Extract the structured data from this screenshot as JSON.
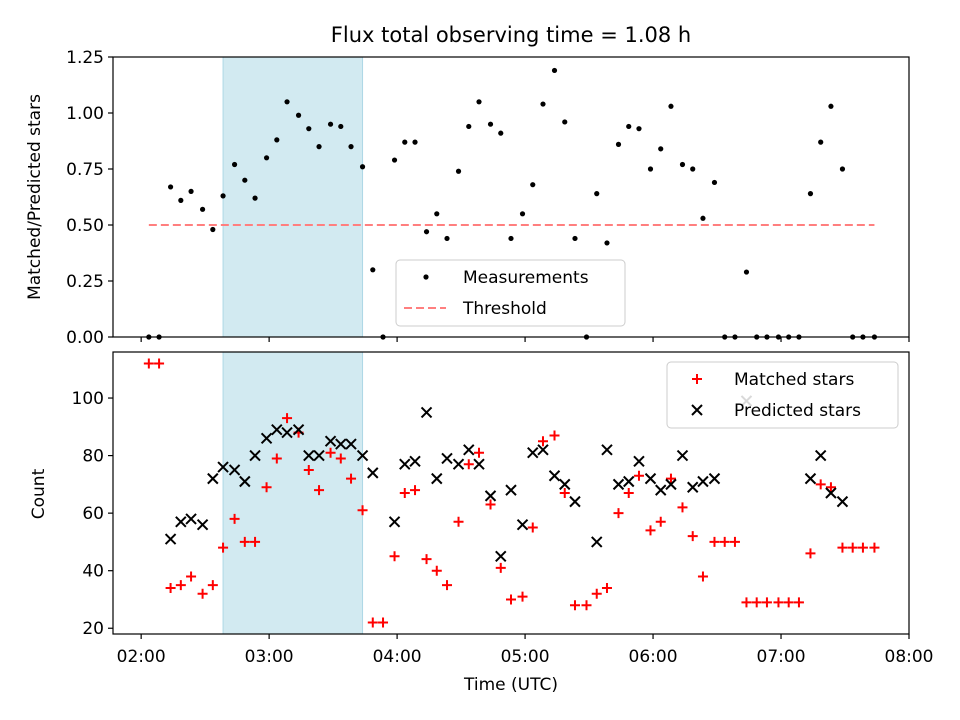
{
  "figure": {
    "title": "Flux total observing time = 1.08 h",
    "xlabel": "Time (UTC)"
  },
  "chart_data": [
    {
      "type": "scatter",
      "ylabel": "Matched/Predicted stars",
      "x_unit": "hours UTC",
      "xlim": [
        1.78,
        8.0
      ],
      "ylim": [
        0.0,
        1.25
      ],
      "yticks": [
        "0.00",
        "0.25",
        "0.50",
        "0.75",
        "1.00",
        "1.25"
      ],
      "highlight_span": [
        2.64,
        3.73
      ],
      "threshold": {
        "name": "Threshold",
        "value": 0.5,
        "x": [
          2.06,
          7.73
        ],
        "color": "#ff7f7f",
        "style": "dashed"
      },
      "series": [
        {
          "name": "Measurements",
          "color": "#000000",
          "marker": "dot",
          "points": [
            [
              2.06,
              0.0
            ],
            [
              2.14,
              0.0
            ],
            [
              2.23,
              0.67
            ],
            [
              2.31,
              0.61
            ],
            [
              2.39,
              0.65
            ],
            [
              2.48,
              0.57
            ],
            [
              2.56,
              0.48
            ],
            [
              2.64,
              0.63
            ],
            [
              2.73,
              0.77
            ],
            [
              2.81,
              0.7
            ],
            [
              2.89,
              0.62
            ],
            [
              2.98,
              0.8
            ],
            [
              3.06,
              0.88
            ],
            [
              3.14,
              1.05
            ],
            [
              3.23,
              0.99
            ],
            [
              3.31,
              0.93
            ],
            [
              3.39,
              0.85
            ],
            [
              3.48,
              0.95
            ],
            [
              3.56,
              0.94
            ],
            [
              3.64,
              0.85
            ],
            [
              3.73,
              0.76
            ],
            [
              3.81,
              0.3
            ],
            [
              3.89,
              0.0
            ],
            [
              3.98,
              0.79
            ],
            [
              4.06,
              0.87
            ],
            [
              4.14,
              0.87
            ],
            [
              4.23,
              0.47
            ],
            [
              4.31,
              0.55
            ],
            [
              4.39,
              0.44
            ],
            [
              4.48,
              0.74
            ],
            [
              4.56,
              0.94
            ],
            [
              4.64,
              1.05
            ],
            [
              4.73,
              0.95
            ],
            [
              4.81,
              0.91
            ],
            [
              4.89,
              0.44
            ],
            [
              4.98,
              0.55
            ],
            [
              5.06,
              0.68
            ],
            [
              5.14,
              1.04
            ],
            [
              5.23,
              1.19
            ],
            [
              5.31,
              0.96
            ],
            [
              5.39,
              0.44
            ],
            [
              5.48,
              0.0
            ],
            [
              5.56,
              0.64
            ],
            [
              5.64,
              0.42
            ],
            [
              5.73,
              0.86
            ],
            [
              5.81,
              0.94
            ],
            [
              5.89,
              0.93
            ],
            [
              5.98,
              0.75
            ],
            [
              6.06,
              0.84
            ],
            [
              6.14,
              1.03
            ],
            [
              6.23,
              0.77
            ],
            [
              6.31,
              0.75
            ],
            [
              6.39,
              0.53
            ],
            [
              6.48,
              0.69
            ],
            [
              6.56,
              0.0
            ],
            [
              6.64,
              0.0
            ],
            [
              6.73,
              0.29
            ],
            [
              6.81,
              0.0
            ],
            [
              6.89,
              0.0
            ],
            [
              6.98,
              0.0
            ],
            [
              7.06,
              0.0
            ],
            [
              7.14,
              0.0
            ],
            [
              7.23,
              0.64
            ],
            [
              7.31,
              0.87
            ],
            [
              7.39,
              1.03
            ],
            [
              7.48,
              0.75
            ],
            [
              7.56,
              0.0
            ],
            [
              7.64,
              0.0
            ],
            [
              7.73,
              0.0
            ]
          ]
        }
      ],
      "legend": {
        "placement": "lower-center",
        "entries": [
          "Measurements",
          "Threshold"
        ]
      }
    },
    {
      "type": "scatter",
      "ylabel": "Count",
      "x_unit": "hours UTC",
      "xlim": [
        1.78,
        8.0
      ],
      "ylim": [
        18,
        116
      ],
      "yticks": [
        "20",
        "40",
        "60",
        "80",
        "100"
      ],
      "xticks": [
        "02:00",
        "03:00",
        "04:00",
        "05:00",
        "06:00",
        "07:00",
        "08:00"
      ],
      "highlight_span": [
        2.64,
        3.73
      ],
      "series": [
        {
          "name": "Matched stars",
          "color": "#ff0000",
          "marker": "plus",
          "points": [
            [
              2.06,
              112
            ],
            [
              2.14,
              112
            ],
            [
              2.23,
              34
            ],
            [
              2.31,
              35
            ],
            [
              2.39,
              38
            ],
            [
              2.48,
              32
            ],
            [
              2.56,
              35
            ],
            [
              2.64,
              48
            ],
            [
              2.73,
              58
            ],
            [
              2.81,
              50
            ],
            [
              2.89,
              50
            ],
            [
              2.98,
              69
            ],
            [
              3.06,
              79
            ],
            [
              3.14,
              93
            ],
            [
              3.23,
              88
            ],
            [
              3.31,
              75
            ],
            [
              3.39,
              68
            ],
            [
              3.48,
              81
            ],
            [
              3.56,
              79
            ],
            [
              3.64,
              72
            ],
            [
              3.73,
              61
            ],
            [
              3.81,
              22
            ],
            [
              3.89,
              22
            ],
            [
              3.98,
              45
            ],
            [
              4.06,
              67
            ],
            [
              4.14,
              68
            ],
            [
              4.23,
              44
            ],
            [
              4.31,
              40
            ],
            [
              4.39,
              35
            ],
            [
              4.48,
              57
            ],
            [
              4.56,
              77
            ],
            [
              4.64,
              81
            ],
            [
              4.73,
              63
            ],
            [
              4.81,
              41
            ],
            [
              4.89,
              30
            ],
            [
              4.98,
              31
            ],
            [
              5.06,
              55
            ],
            [
              5.14,
              85
            ],
            [
              5.23,
              87
            ],
            [
              5.31,
              67
            ],
            [
              5.39,
              28
            ],
            [
              5.48,
              28
            ],
            [
              5.56,
              32
            ],
            [
              5.64,
              34
            ],
            [
              5.73,
              60
            ],
            [
              5.81,
              67
            ],
            [
              5.89,
              73
            ],
            [
              5.98,
              54
            ],
            [
              6.06,
              57
            ],
            [
              6.14,
              72
            ],
            [
              6.23,
              62
            ],
            [
              6.31,
              52
            ],
            [
              6.39,
              38
            ],
            [
              6.48,
              50
            ],
            [
              6.56,
              50
            ],
            [
              6.64,
              50
            ],
            [
              6.73,
              29
            ],
            [
              6.81,
              29
            ],
            [
              6.89,
              29
            ],
            [
              6.98,
              29
            ],
            [
              7.06,
              29
            ],
            [
              7.14,
              29
            ],
            [
              7.23,
              46
            ],
            [
              7.31,
              70
            ],
            [
              7.39,
              69
            ],
            [
              7.48,
              48
            ],
            [
              7.56,
              48
            ],
            [
              7.64,
              48
            ],
            [
              7.73,
              48
            ]
          ]
        },
        {
          "name": "Predicted stars",
          "color": "#000000",
          "marker": "x",
          "points": [
            [
              2.23,
              51
            ],
            [
              2.31,
              57
            ],
            [
              2.39,
              58
            ],
            [
              2.48,
              56
            ],
            [
              2.56,
              72
            ],
            [
              2.64,
              76
            ],
            [
              2.73,
              75
            ],
            [
              2.81,
              71
            ],
            [
              2.89,
              80
            ],
            [
              2.98,
              86
            ],
            [
              3.06,
              89
            ],
            [
              3.14,
              88
            ],
            [
              3.23,
              89
            ],
            [
              3.31,
              80
            ],
            [
              3.39,
              80
            ],
            [
              3.48,
              85
            ],
            [
              3.56,
              84
            ],
            [
              3.64,
              84
            ],
            [
              3.73,
              80
            ],
            [
              3.81,
              74
            ],
            [
              3.98,
              57
            ],
            [
              4.06,
              77
            ],
            [
              4.14,
              78
            ],
            [
              4.23,
              95
            ],
            [
              4.31,
              72
            ],
            [
              4.39,
              79
            ],
            [
              4.48,
              77
            ],
            [
              4.56,
              82
            ],
            [
              4.64,
              77
            ],
            [
              4.73,
              66
            ],
            [
              4.81,
              45
            ],
            [
              4.89,
              68
            ],
            [
              4.98,
              56
            ],
            [
              5.06,
              81
            ],
            [
              5.14,
              82
            ],
            [
              5.23,
              73
            ],
            [
              5.31,
              70
            ],
            [
              5.39,
              64
            ],
            [
              5.56,
              50
            ],
            [
              5.64,
              82
            ],
            [
              5.73,
              70
            ],
            [
              5.81,
              71
            ],
            [
              5.89,
              78
            ],
            [
              5.98,
              72
            ],
            [
              6.06,
              68
            ],
            [
              6.14,
              70
            ],
            [
              6.23,
              80
            ],
            [
              6.31,
              69
            ],
            [
              6.39,
              71
            ],
            [
              6.48,
              72
            ],
            [
              6.73,
              99
            ],
            [
              7.23,
              72
            ],
            [
              7.31,
              80
            ],
            [
              7.39,
              67
            ],
            [
              7.48,
              64
            ]
          ]
        }
      ],
      "legend": {
        "placement": "upper-right",
        "entries": [
          "Matched stars",
          "Predicted stars"
        ]
      }
    }
  ],
  "colors": {
    "span": "#add8e6",
    "threshold": "#ff7f7f",
    "matched": "#ff0000",
    "predicted": "#000000",
    "axes": "#000000"
  }
}
